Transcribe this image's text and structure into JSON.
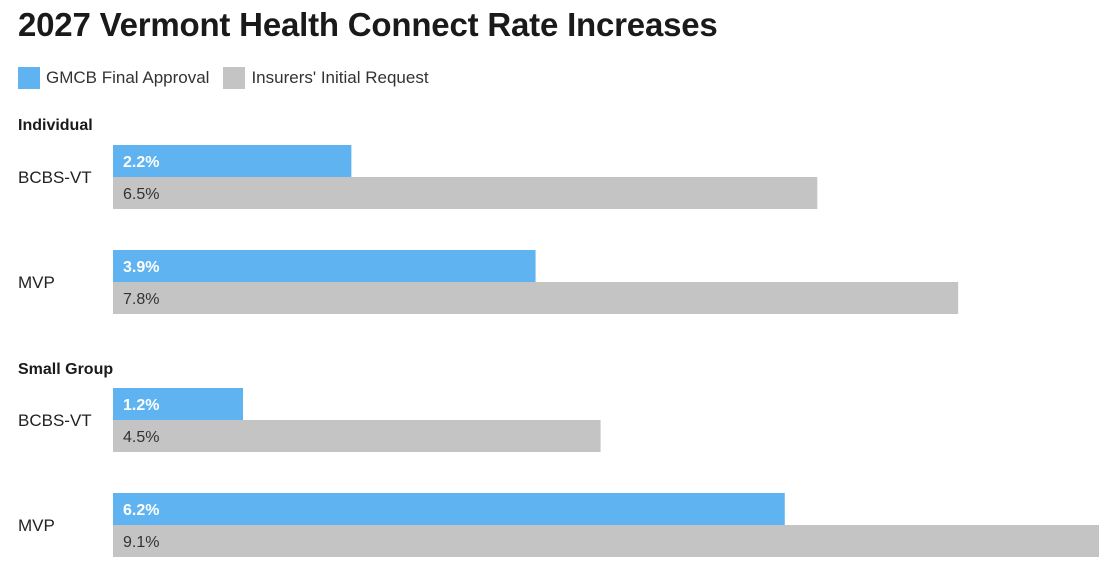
{
  "chart_data": {
    "type": "bar",
    "orientation": "horizontal",
    "title": "2027 Vermont Health Connect Rate Increases",
    "legend": {
      "placement": "top-left",
      "entries": [
        "GMCB Final Approval",
        "Insurers' Initial Request"
      ]
    },
    "series": [
      {
        "name": "GMCB Final Approval",
        "color": "#5fb3f0"
      },
      {
        "name": "Insurers' Initial Request",
        "color": "#c4c4c4"
      }
    ],
    "groups": [
      {
        "label": "Individual",
        "categories": [
          {
            "label": "BCBS-VT",
            "values": [
              2.2,
              6.5
            ],
            "labels": [
              "2.2%",
              "6.5%"
            ]
          },
          {
            "label": "MVP",
            "values": [
              3.9,
              7.8
            ],
            "labels": [
              "3.9%",
              "7.8%"
            ]
          }
        ]
      },
      {
        "label": "Small Group",
        "categories": [
          {
            "label": "BCBS-VT",
            "values": [
              1.2,
              4.5
            ],
            "labels": [
              "1.2%",
              "4.5%"
            ]
          },
          {
            "label": "MVP",
            "values": [
              6.2,
              9.1
            ],
            "labels": [
              "6.2%",
              "9.1%"
            ]
          }
        ]
      }
    ],
    "xlim": [
      0,
      9.1
    ],
    "grid": false,
    "axes_visible": false,
    "label_colors": [
      "#ffffff",
      "#333333"
    ]
  }
}
